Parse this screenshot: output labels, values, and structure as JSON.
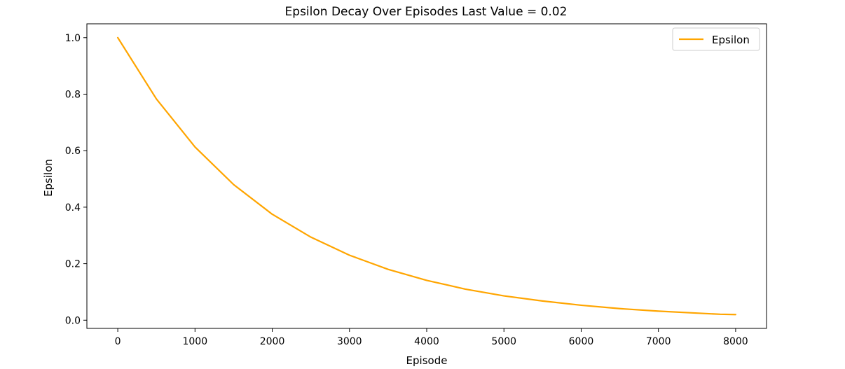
{
  "chart_data": {
    "type": "line",
    "title": "Epsilon Decay Over Episodes Last Value =  0.02",
    "xlabel": "Episode",
    "ylabel": "Epsilon",
    "xlim": [
      -400,
      8400
    ],
    "ylim": [
      -0.029,
      1.049
    ],
    "x_ticks": [
      0,
      1000,
      2000,
      3000,
      4000,
      5000,
      6000,
      7000,
      8000
    ],
    "x_tick_labels": [
      "0",
      "1000",
      "2000",
      "3000",
      "4000",
      "5000",
      "6000",
      "7000",
      "8000"
    ],
    "y_ticks": [
      0.0,
      0.2,
      0.4,
      0.6,
      0.8,
      1.0
    ],
    "y_tick_labels": [
      "0.0",
      "0.2",
      "0.4",
      "0.6",
      "0.8",
      "1.0"
    ],
    "grid": false,
    "legend": {
      "position": "top-right",
      "entries": [
        "Epsilon"
      ]
    },
    "series": [
      {
        "name": "Epsilon",
        "color": "#ffa500",
        "x": [
          0,
          500,
          1000,
          1500,
          2000,
          2500,
          3000,
          3500,
          4000,
          4500,
          5000,
          5500,
          6000,
          6500,
          7000,
          7500,
          7800,
          8000
        ],
        "y": [
          1.0,
          0.783,
          0.613,
          0.48,
          0.375,
          0.294,
          0.23,
          0.18,
          0.141,
          0.11,
          0.086,
          0.068,
          0.053,
          0.041,
          0.032,
          0.025,
          0.021,
          0.02
        ]
      }
    ]
  }
}
